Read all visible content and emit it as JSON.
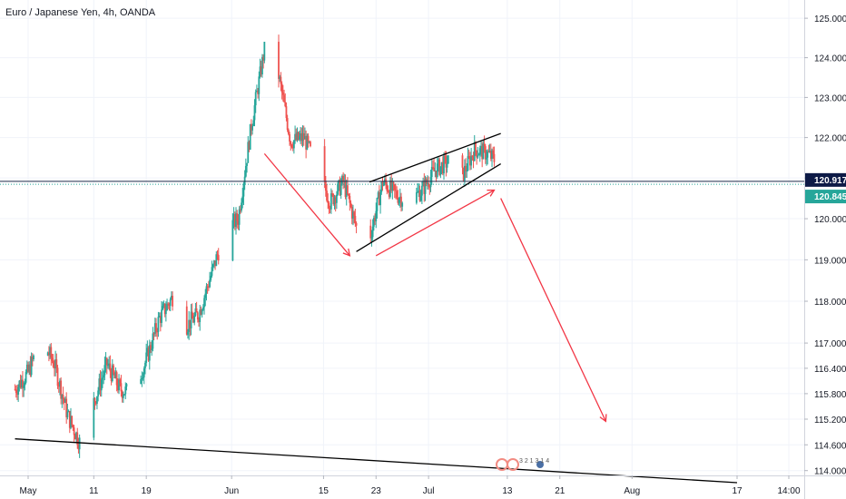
{
  "header": {
    "symbol": "Euro / Japanese Yen, 4h, OANDA"
  },
  "price_labels": {
    "current": "120.917",
    "secondary": "120.845"
  },
  "colors": {
    "up": "#26a69a",
    "down": "#ef5350",
    "grid": "#f0f3fa",
    "axis_text": "#131722",
    "price_line": "#1e2a4a",
    "price_tag": "#0d1a46",
    "secondary_tag": "#26a69a",
    "drawing_arrow": "#f23645",
    "drawing_line": "#000000"
  },
  "watermark": {
    "text": "3 2 1 3 1 4"
  },
  "chart_data": {
    "type": "candlestick",
    "title": "Euro / Japanese Yen, 4h, OANDA",
    "y_axis_ticks": [
      "125.000",
      "124.000",
      "123.000",
      "122.000",
      "121.000",
      "120.000",
      "119.000",
      "118.000",
      "117.000",
      "116.400",
      "115.800",
      "115.200",
      "114.600",
      "114.000"
    ],
    "x_axis_ticks": [
      "May",
      "11",
      "19",
      "Jun",
      "15",
      "23",
      "Jul",
      "13",
      "21",
      "Aug",
      "17",
      "14:00"
    ],
    "grid": true,
    "price_scale": "log",
    "y_range": [
      113.72,
      125.28
    ],
    "price_path": {
      "x_points": [
        "Apr 29",
        "May 1",
        "May 3",
        "May 5",
        "May 7",
        "May 9",
        "May 11",
        "May 13",
        "May 15",
        "May 17",
        "May 19",
        "May 21",
        "May 23",
        "May 25",
        "May 27",
        "May 29",
        "May 31",
        "Jun 2",
        "Jun 4",
        "Jun 6",
        "Jun 8",
        "Jun 10",
        "Jun 12",
        "Jun 14",
        "Jun 16",
        "Jun 18",
        "Jun 20",
        "Jun 22",
        "Jun 24",
        "Jun 26",
        "Jun 28",
        "Jun 30",
        "Jul 2",
        "Jul 4",
        "Jul 6",
        "Jul 8",
        "Jul 10",
        "Jul 12",
        "Jul 13"
      ],
      "close_values": [
        115.9,
        116.3,
        117.1,
        116.5,
        115.3,
        114.6,
        115.6,
        116.5,
        115.9,
        115.8,
        116.6,
        117.6,
        118.1,
        117.4,
        117.7,
        118.7,
        119.7,
        120.0,
        122.3,
        124.2,
        123.7,
        121.9,
        122.0,
        121.3,
        120.4,
        120.9,
        119.8,
        119.5,
        120.9,
        120.6,
        120.4,
        120.7,
        121.2,
        121.4,
        121.0,
        121.7,
        121.6,
        121.3,
        120.9
      ]
    },
    "drawings": [
      {
        "kind": "arrow",
        "color": "red",
        "from": [
          "Jun 6",
          121.6
        ],
        "to": [
          "Jun 19",
          119.1
        ]
      },
      {
        "kind": "arrow",
        "color": "red",
        "from": [
          "Jun 23",
          119.1
        ],
        "to": [
          "Jul 11",
          120.7
        ]
      },
      {
        "kind": "arrow",
        "color": "red",
        "from": [
          "Jul 12",
          120.5
        ],
        "to": [
          "Jul 28",
          115.15
        ]
      },
      {
        "kind": "trendline",
        "color": "black",
        "from": [
          "Jun 22",
          120.9
        ],
        "to": [
          "Jul 12",
          122.1
        ]
      },
      {
        "kind": "trendline",
        "color": "black",
        "from": [
          "Jun 20",
          119.2
        ],
        "to": [
          "Jul 12",
          121.35
        ]
      },
      {
        "kind": "trendline",
        "color": "black",
        "from": [
          "Apr 29",
          114.74
        ],
        "to": [
          "Aug 17",
          113.72
        ]
      }
    ],
    "horizontal_lines": [
      {
        "value": 120.917,
        "label": "120.917"
      },
      {
        "value": 120.845,
        "label": "120.845"
      }
    ]
  }
}
